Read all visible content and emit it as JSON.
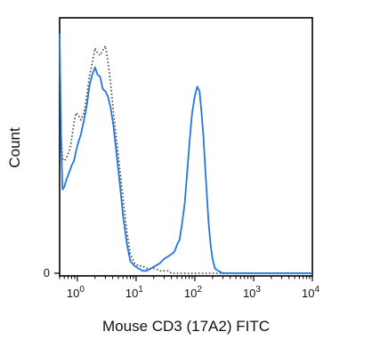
{
  "chart_data": {
    "type": "line",
    "title": "",
    "xlabel": "Mouse CD3 (17A2) FITC",
    "ylabel": "Count",
    "x_scale": "log",
    "xlim": [
      0.5,
      10000
    ],
    "ylim": [
      0,
      100
    ],
    "grid": false,
    "legend": "none",
    "x_ticks": [
      {
        "value": 1,
        "base": "10",
        "exp": "0"
      },
      {
        "value": 10,
        "base": "10",
        "exp": "1"
      },
      {
        "value": 100,
        "base": "10",
        "exp": "2"
      },
      {
        "value": 1000,
        "base": "10",
        "exp": "3"
      },
      {
        "value": 10000,
        "base": "10",
        "exp": "4"
      }
    ],
    "y_ticks": [
      {
        "value": 0,
        "label": "0"
      }
    ],
    "series": [
      {
        "color": "#2277dd",
        "style": "solid",
        "x": [
          0.5,
          0.53,
          0.56,
          0.6,
          0.65,
          0.7,
          0.75,
          0.8,
          0.88,
          0.95,
          1.05,
          1.15,
          1.3,
          1.45,
          1.6,
          1.8,
          2.0,
          2.2,
          2.45,
          2.7,
          3.0,
          3.3,
          3.7,
          4.1,
          4.6,
          5.2,
          6.0,
          7.0,
          8.0,
          9.5,
          11,
          13,
          15,
          18,
          21,
          25,
          30,
          35,
          40,
          45,
          50,
          55,
          60,
          67,
          74,
          82,
          90,
          100,
          110,
          120,
          130,
          140,
          150,
          160,
          170,
          185,
          200,
          220,
          250,
          300,
          400,
          600,
          1000,
          3000,
          10000
        ],
        "y": [
          100,
          56,
          35,
          36,
          39,
          41,
          43,
          45,
          47,
          51,
          55,
          58,
          64,
          70,
          78,
          83,
          86,
          83,
          82,
          77,
          76,
          74,
          69,
          62,
          51,
          39,
          24,
          12,
          5,
          3,
          2,
          1,
          1,
          2,
          3,
          4,
          6,
          7,
          8,
          9,
          12,
          14,
          20,
          29,
          42,
          56,
          67,
          74,
          78,
          76,
          67,
          57,
          44,
          33,
          22,
          12,
          6,
          2,
          1,
          0,
          0,
          0,
          0,
          0,
          0
        ]
      },
      {
        "color": "#444444",
        "style": "dotted",
        "x": [
          0.5,
          0.53,
          0.56,
          0.6,
          0.65,
          0.7,
          0.75,
          0.8,
          0.88,
          0.95,
          1.05,
          1.15,
          1.3,
          1.45,
          1.6,
          1.8,
          2.0,
          2.2,
          2.45,
          2.7,
          3.0,
          3.3,
          3.7,
          4.1,
          4.6,
          5.2,
          6.0,
          7.0,
          8.0,
          9.5,
          11,
          13,
          15,
          18,
          21,
          25,
          30,
          35,
          40,
          50,
          70,
          100,
          300,
          10000
        ],
        "y": [
          100,
          58,
          48,
          47,
          48,
          50,
          52,
          56,
          63,
          67,
          66,
          64,
          67,
          74,
          82,
          88,
          94,
          92,
          91,
          93,
          95,
          89,
          79,
          68,
          57,
          45,
          31,
          17,
          8,
          4,
          3,
          3,
          2,
          2,
          2,
          1,
          1,
          1,
          0,
          0,
          0,
          0,
          0,
          0
        ]
      }
    ]
  }
}
